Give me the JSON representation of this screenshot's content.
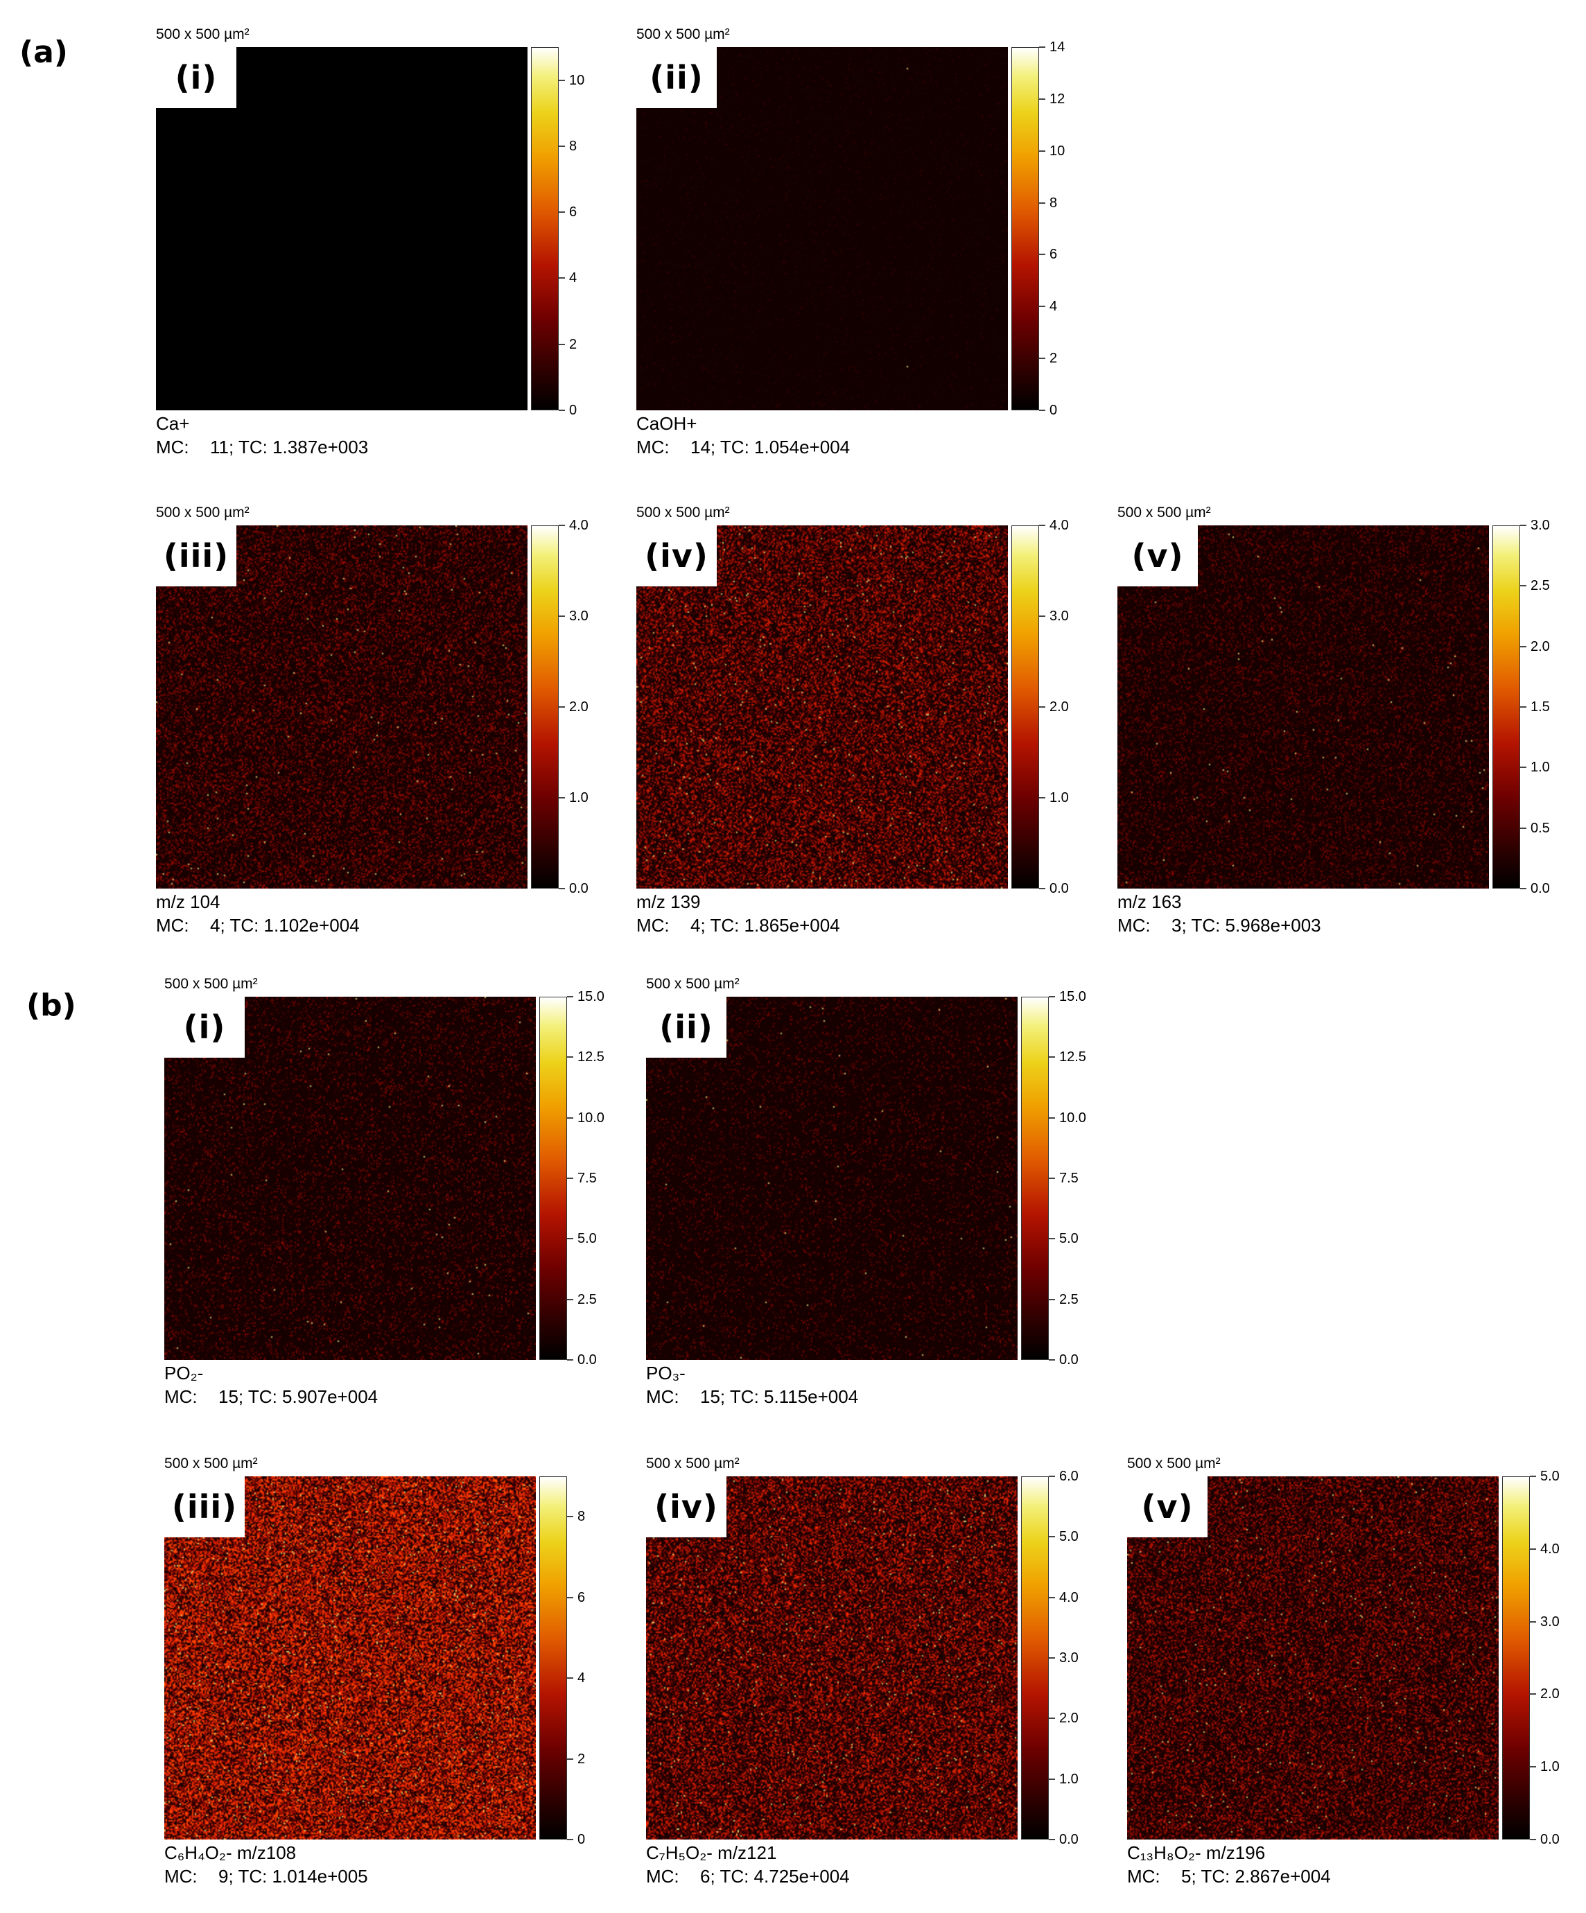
{
  "sections": [
    {
      "label": "(a)",
      "panels": [
        {
          "tag": "(i)",
          "scale": "500 x 500 µm²",
          "species": "Ca+",
          "mc_label": "MC:",
          "mc": "11;",
          "tc": "TC: 1.387e+003",
          "colorbar": {
            "min": 0,
            "max": 11,
            "ticks": [
              "0",
              "2",
              "4",
              "6",
              "8",
              "10"
            ]
          },
          "intensity": 0.0,
          "density": 0.0
        },
        {
          "tag": "(ii)",
          "scale": "500 x 500 µm²",
          "species": "CaOH+",
          "mc_label": "MC:",
          "mc": "14;",
          "tc": "TC: 1.054e+004",
          "colorbar": {
            "min": 0,
            "max": 14,
            "ticks": [
              "0",
              "2",
              "4",
              "6",
              "8",
              "10",
              "12",
              "14"
            ]
          },
          "intensity": 0.04,
          "density": 0.02
        },
        {
          "tag": "(iii)",
          "scale": "500 x 500 µm²",
          "species": "m/z 104",
          "mc_label": "MC:",
          "mc": "4;",
          "tc": "TC: 1.102e+004",
          "colorbar": {
            "min": 0,
            "max": 4,
            "ticks": [
              "0.0",
              "1.0",
              "2.0",
              "3.0",
              "4.0"
            ]
          },
          "intensity": 0.3,
          "density": 0.3
        },
        {
          "tag": "(iv)",
          "scale": "500 x 500 µm²",
          "species": "m/z 139",
          "mc_label": "MC:",
          "mc": "4;",
          "tc": "TC: 1.865e+004",
          "colorbar": {
            "min": 0,
            "max": 4,
            "ticks": [
              "0.0",
              "1.0",
              "2.0",
              "3.0",
              "4.0"
            ]
          },
          "intensity": 0.45,
          "density": 0.45
        },
        {
          "tag": "(v)",
          "scale": "500 x 500 µm²",
          "species": "m/z 163",
          "mc_label": "MC:",
          "mc": "3;",
          "tc": "TC: 5.968e+003",
          "colorbar": {
            "min": 0,
            "max": 3,
            "ticks": [
              "0.0",
              "0.5",
              "1.0",
              "1.5",
              "2.0",
              "2.5",
              "3.0"
            ]
          },
          "intensity": 0.22,
          "density": 0.22
        }
      ]
    },
    {
      "label": "(b)",
      "panels": [
        {
          "tag": "(i)",
          "scale": "500 x 500 µm²",
          "species": "PO₂-",
          "mc_label": "MC:",
          "mc": "15;",
          "tc": "TC: 5.907e+004",
          "colorbar": {
            "min": 0,
            "max": 15,
            "ticks": [
              "0.0",
              "2.5",
              "5.0",
              "7.5",
              "10.0",
              "12.5",
              "15.0"
            ]
          },
          "intensity": 0.25,
          "density": 0.15
        },
        {
          "tag": "(ii)",
          "scale": "500 x 500 µm²",
          "species": "PO₃-",
          "mc_label": "MC:",
          "mc": "15;",
          "tc": "TC: 5.115e+004",
          "colorbar": {
            "min": 0,
            "max": 15,
            "ticks": [
              "0.0",
              "2.5",
              "5.0",
              "7.5",
              "10.0",
              "12.5",
              "15.0"
            ]
          },
          "intensity": 0.22,
          "density": 0.12
        },
        {
          "tag": "(iii)",
          "scale": "500 x 500 µm²",
          "species": "C₆H₄O₂-  m/z108",
          "mc_label": "MC:",
          "mc": "9;",
          "tc": "TC: 1.014e+005",
          "colorbar": {
            "min": 0,
            "max": 9,
            "ticks": [
              "0",
              "2",
              "4",
              "6",
              "8"
            ]
          },
          "intensity": 0.7,
          "density": 0.7
        },
        {
          "tag": "(iv)",
          "scale": "500 x 500 µm²",
          "species": "C₇H₅O₂- m/z121",
          "mc_label": "MC:",
          "mc": "6;",
          "tc": "TC: 4.725e+004",
          "colorbar": {
            "min": 0,
            "max": 6,
            "ticks": [
              "0.0",
              "1.0",
              "2.0",
              "3.0",
              "4.0",
              "5.0",
              "6.0"
            ]
          },
          "intensity": 0.5,
          "density": 0.5
        },
        {
          "tag": "(v)",
          "scale": "500 x 500 µm²",
          "species": "C₁₃H₈O₂-  m/z196",
          "mc_label": "MC:",
          "mc": "5;",
          "tc": "TC: 2.867e+004",
          "colorbar": {
            "min": 0,
            "max": 5,
            "ticks": [
              "0.0",
              "1.0",
              "2.0",
              "3.0",
              "4.0",
              "5.0"
            ]
          },
          "intensity": 0.4,
          "density": 0.4
        }
      ]
    }
  ]
}
